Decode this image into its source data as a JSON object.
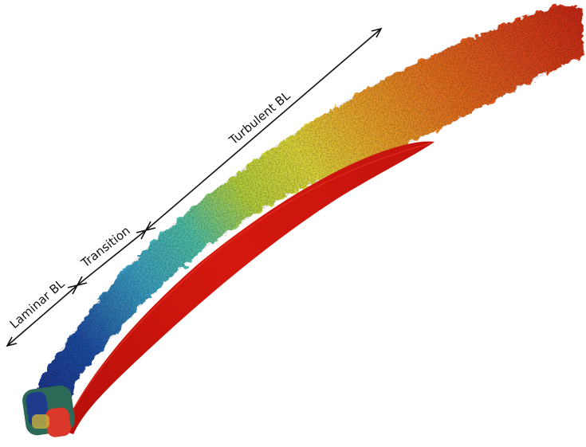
{
  "annotations": {
    "laminar": "Laminar BL",
    "transition": "Transition",
    "turbulent": "Turbulent BL"
  },
  "colors": {
    "background": "#ffffff",
    "blade_surface": "#c8140f",
    "laminar_blue": "#1c3f93",
    "transition_cyan": "#3fb2c4",
    "mid_yellow": "#d8d63a",
    "wake_orange": "#e2701f",
    "wake_red": "#cf2a12",
    "arrow": "#111111"
  }
}
